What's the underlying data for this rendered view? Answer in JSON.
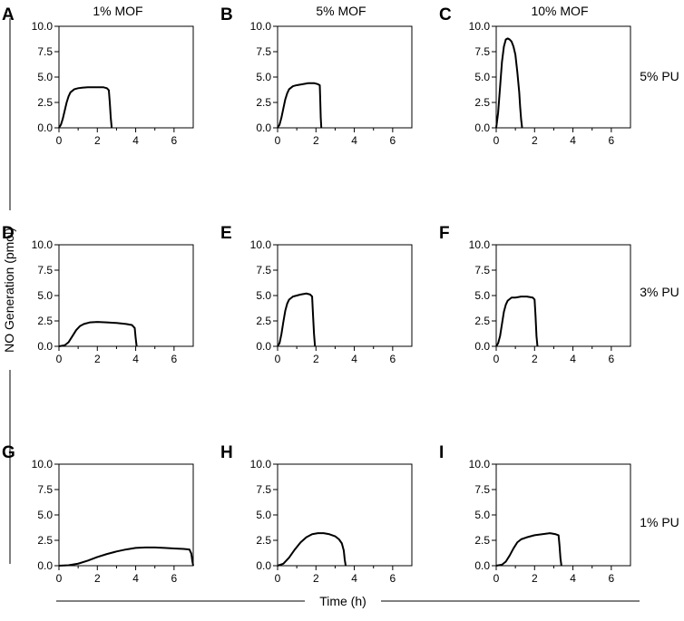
{
  "figure": {
    "column_titles": [
      "1% MOF",
      "5% MOF",
      "10% MOF"
    ],
    "row_labels": [
      "5% PU",
      "3% PU",
      "1% PU"
    ],
    "ylabel": "NO Generation (pmol)",
    "xlabel": "Time (h)",
    "line_color": "#000000"
  },
  "chart_data": [
    {
      "type": "line",
      "panel": "A",
      "mof": "1% MOF",
      "pu": "5% PU",
      "xlim": [
        0,
        7
      ],
      "ylim": [
        0,
        10
      ],
      "x_ticks": [
        "0",
        "2",
        "4",
        "6"
      ],
      "y_ticks": [
        "0.0",
        "2.5",
        "5.0",
        "7.5",
        "10.0"
      ],
      "x": [
        0,
        0.1,
        0.2,
        0.3,
        0.4,
        0.5,
        0.6,
        0.8,
        1.0,
        1.2,
        1.5,
        2.0,
        2.3,
        2.5,
        2.6,
        2.65,
        2.7,
        2.75
      ],
      "y": [
        0,
        0.3,
        0.9,
        1.7,
        2.5,
        3.1,
        3.5,
        3.8,
        3.9,
        3.95,
        4.0,
        4.0,
        4.0,
        3.9,
        3.7,
        2.5,
        1.0,
        0
      ]
    },
    {
      "type": "line",
      "panel": "B",
      "mof": "5% MOF",
      "pu": "5% PU",
      "xlim": [
        0,
        7
      ],
      "ylim": [
        0,
        10
      ],
      "x_ticks": [
        "0",
        "2",
        "4",
        "6"
      ],
      "y_ticks": [
        "0.0",
        "2.5",
        "5.0",
        "7.5",
        "10.0"
      ],
      "x": [
        0,
        0.1,
        0.2,
        0.3,
        0.4,
        0.5,
        0.6,
        0.8,
        1.0,
        1.3,
        1.6,
        1.9,
        2.1,
        2.2,
        2.22,
        2.25,
        2.28
      ],
      "y": [
        0,
        0.3,
        1.0,
        1.9,
        2.8,
        3.4,
        3.8,
        4.1,
        4.2,
        4.3,
        4.4,
        4.4,
        4.3,
        4.2,
        3.0,
        1.0,
        0
      ]
    },
    {
      "type": "line",
      "panel": "C",
      "mof": "10% MOF",
      "pu": "5% PU",
      "xlim": [
        0,
        7
      ],
      "ylim": [
        0,
        10
      ],
      "x_ticks": [
        "0",
        "2",
        "4",
        "6"
      ],
      "y_ticks": [
        "0.0",
        "2.5",
        "5.0",
        "7.5",
        "10.0"
      ],
      "x": [
        0,
        0.1,
        0.2,
        0.3,
        0.4,
        0.5,
        0.6,
        0.7,
        0.8,
        0.9,
        1.0,
        1.1,
        1.2,
        1.25,
        1.3,
        1.35
      ],
      "y": [
        0,
        1.5,
        4.0,
        6.5,
        8.0,
        8.7,
        8.8,
        8.7,
        8.5,
        8.0,
        7.2,
        5.5,
        3.5,
        2.0,
        0.8,
        0
      ]
    },
    {
      "type": "line",
      "panel": "D",
      "mof": "1% MOF",
      "pu": "3% PU",
      "xlim": [
        0,
        7
      ],
      "ylim": [
        0,
        10
      ],
      "x_ticks": [
        "0",
        "2",
        "4",
        "6"
      ],
      "y_ticks": [
        "0.0",
        "2.5",
        "5.0",
        "7.5",
        "10.0"
      ],
      "x": [
        0,
        0.3,
        0.5,
        0.7,
        0.9,
        1.1,
        1.3,
        1.6,
        2.0,
        2.5,
        3.0,
        3.5,
        3.8,
        3.95,
        4.0,
        4.05
      ],
      "y": [
        0,
        0.1,
        0.4,
        1.0,
        1.6,
        2.0,
        2.2,
        2.35,
        2.4,
        2.35,
        2.3,
        2.2,
        2.1,
        1.8,
        0.8,
        0
      ]
    },
    {
      "type": "line",
      "panel": "E",
      "mof": "5% MOF",
      "pu": "3% PU",
      "xlim": [
        0,
        7
      ],
      "ylim": [
        0,
        10
      ],
      "x_ticks": [
        "0",
        "2",
        "4",
        "6"
      ],
      "y_ticks": [
        "0.0",
        "2.5",
        "5.0",
        "7.5",
        "10.0"
      ],
      "x": [
        0,
        0.1,
        0.2,
        0.3,
        0.4,
        0.5,
        0.6,
        0.8,
        1.0,
        1.2,
        1.5,
        1.7,
        1.8,
        1.85,
        1.9,
        1.95
      ],
      "y": [
        0,
        0.3,
        1.2,
        2.4,
        3.5,
        4.2,
        4.6,
        4.9,
        5.0,
        5.1,
        5.2,
        5.1,
        4.9,
        3.0,
        1.2,
        0
      ]
    },
    {
      "type": "line",
      "panel": "F",
      "mof": "10% MOF",
      "pu": "3% PU",
      "xlim": [
        0,
        7
      ],
      "ylim": [
        0,
        10
      ],
      "x_ticks": [
        "0",
        "2",
        "4",
        "6"
      ],
      "y_ticks": [
        "0.0",
        "2.5",
        "5.0",
        "7.5",
        "10.0"
      ],
      "x": [
        0,
        0.1,
        0.2,
        0.3,
        0.4,
        0.5,
        0.6,
        0.8,
        1.0,
        1.3,
        1.6,
        1.9,
        2.0,
        2.05,
        2.1,
        2.15
      ],
      "y": [
        0,
        0.3,
        1.0,
        2.2,
        3.4,
        4.1,
        4.5,
        4.8,
        4.8,
        4.9,
        4.9,
        4.8,
        4.6,
        3.0,
        1.0,
        0
      ]
    },
    {
      "type": "line",
      "panel": "G",
      "mof": "1% MOF",
      "pu": "1% PU",
      "xlim": [
        0,
        7
      ],
      "ylim": [
        0,
        10
      ],
      "x_ticks": [
        "0",
        "2",
        "4",
        "6"
      ],
      "y_ticks": [
        "0.0",
        "2.5",
        "5.0",
        "7.5",
        "10.0"
      ],
      "x": [
        0,
        0.5,
        1.0,
        1.5,
        2.0,
        2.5,
        3.0,
        3.5,
        4.0,
        4.5,
        5.0,
        5.5,
        6.0,
        6.5,
        6.8,
        6.9,
        6.95,
        7.0
      ],
      "y": [
        0,
        0.05,
        0.2,
        0.5,
        0.85,
        1.15,
        1.4,
        1.6,
        1.75,
        1.8,
        1.8,
        1.75,
        1.7,
        1.65,
        1.6,
        1.2,
        0.5,
        0
      ]
    },
    {
      "type": "line",
      "panel": "H",
      "mof": "5% MOF",
      "pu": "1% PU",
      "xlim": [
        0,
        7
      ],
      "ylim": [
        0,
        10
      ],
      "x_ticks": [
        "0",
        "2",
        "4",
        "6"
      ],
      "y_ticks": [
        "0.0",
        "2.5",
        "5.0",
        "7.5",
        "10.0"
      ],
      "x": [
        0,
        0.3,
        0.6,
        0.9,
        1.2,
        1.5,
        1.8,
        2.1,
        2.4,
        2.7,
        3.0,
        3.2,
        3.35,
        3.45,
        3.5,
        3.55
      ],
      "y": [
        0,
        0.2,
        0.8,
        1.6,
        2.3,
        2.8,
        3.1,
        3.2,
        3.2,
        3.1,
        2.9,
        2.6,
        2.2,
        1.5,
        0.6,
        0
      ]
    },
    {
      "type": "line",
      "panel": "I",
      "mof": "10% MOF",
      "pu": "1% PU",
      "xlim": [
        0,
        7
      ],
      "ylim": [
        0,
        10
      ],
      "x_ticks": [
        "0",
        "2",
        "4",
        "6"
      ],
      "y_ticks": [
        "0.0",
        "2.5",
        "5.0",
        "7.5",
        "10.0"
      ],
      "x": [
        0,
        0.3,
        0.5,
        0.7,
        0.9,
        1.1,
        1.3,
        1.6,
        2.0,
        2.4,
        2.8,
        3.1,
        3.25,
        3.3,
        3.35,
        3.4
      ],
      "y": [
        0,
        0.1,
        0.4,
        1.0,
        1.7,
        2.3,
        2.6,
        2.8,
        3.0,
        3.1,
        3.2,
        3.1,
        3.0,
        2.0,
        0.7,
        0
      ]
    }
  ]
}
